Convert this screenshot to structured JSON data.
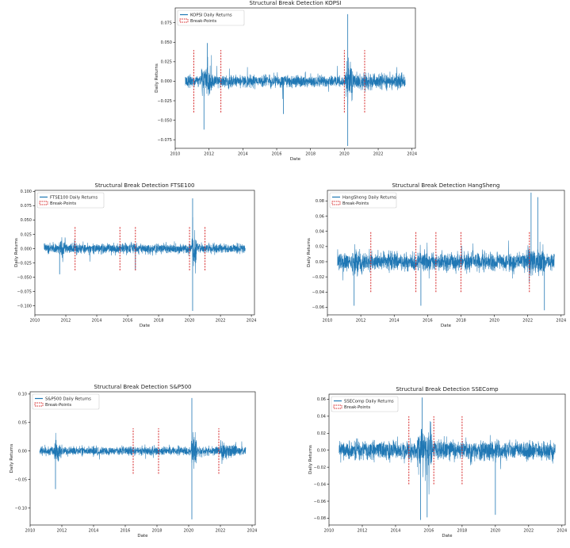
{
  "colors": {
    "line": "#1f77b4",
    "breaks": "#d62728",
    "axis": "#000000"
  },
  "chart_data": [
    {
      "id": "kopsi",
      "type": "line",
      "title": "Structural Break Detection KOPSI",
      "xlabel": "Date",
      "ylabel": "Daily Returns",
      "legend": {
        "placement": "top-left",
        "series_label": "KOPSI Daily Returns",
        "breaks_label": "Break-Points"
      },
      "xlim": [
        2010.0,
        2024.2
      ],
      "ylim": [
        -0.086,
        0.094
      ],
      "x_ticks": [
        2010,
        2012,
        2014,
        2016,
        2018,
        2020,
        2022,
        2024
      ],
      "y_ticks": [
        -0.075,
        -0.05,
        -0.025,
        0.0,
        0.025,
        0.05,
        0.075
      ],
      "y_tick_labels": [
        "−0.075",
        "−0.050",
        "−0.025",
        "0.000",
        "0.025",
        "0.050",
        "0.075"
      ],
      "series": {
        "name": "KOPSI Daily Returns",
        "x_range": [
          2010.6,
          2023.6
        ],
        "base_vol": 0.0085,
        "vol_regimes": [
          {
            "from": 2011.55,
            "to": 2012.2,
            "vol": 0.02
          },
          {
            "from": 2020.1,
            "to": 2020.5,
            "vol": 0.028
          },
          {
            "from": 2020.5,
            "to": 2021.3,
            "vol": 0.012
          },
          {
            "from": 2021.3,
            "to": 2023.6,
            "vol": 0.011
          }
        ],
        "extremes": [
          {
            "x": 2011.7,
            "y": -0.062
          },
          {
            "x": 2011.9,
            "y": 0.049
          },
          {
            "x": 2020.2,
            "y": 0.086
          },
          {
            "x": 2020.2,
            "y": -0.083
          },
          {
            "x": 2016.4,
            "y": -0.042
          }
        ]
      },
      "breaks": {
        "x": [
          2011.1,
          2012.7,
          2020.0,
          2021.2
        ],
        "y_range": [
          -0.04,
          0.04
        ]
      }
    },
    {
      "id": "ftse100",
      "type": "line",
      "title": "Structural Break Detection FTSE100",
      "xlabel": "Date",
      "ylabel": "Daily Returns",
      "legend": {
        "placement": "top-left",
        "series_label": "FTSE100 Daily Returns",
        "breaks_label": "Break-Points"
      },
      "xlim": [
        2010.0,
        2024.2
      ],
      "ylim": [
        -0.116,
        0.102
      ],
      "x_ticks": [
        2010,
        2012,
        2014,
        2016,
        2018,
        2020,
        2022,
        2024
      ],
      "y_ticks": [
        -0.1,
        -0.075,
        -0.05,
        -0.025,
        0.0,
        0.025,
        0.05,
        0.075,
        0.1
      ],
      "y_tick_labels": [
        "−0.100",
        "−0.075",
        "−0.050",
        "−0.025",
        "0.000",
        "0.025",
        "0.050",
        "0.075",
        "0.100"
      ],
      "series": {
        "name": "FTSE100 Daily Returns",
        "x_range": [
          2010.6,
          2023.6
        ],
        "base_vol": 0.0095,
        "vol_regimes": [
          {
            "from": 2011.5,
            "to": 2012.0,
            "vol": 0.017
          },
          {
            "from": 2020.15,
            "to": 2020.45,
            "vol": 0.03
          }
        ],
        "extremes": [
          {
            "x": 2020.2,
            "y": 0.088
          },
          {
            "x": 2020.2,
            "y": -0.109
          },
          {
            "x": 2016.5,
            "y": -0.038
          },
          {
            "x": 2011.6,
            "y": -0.045
          }
        ]
      },
      "breaks": {
        "x": [
          2012.6,
          2015.5,
          2016.5,
          2020.0,
          2021.0
        ],
        "y_range": [
          -0.038,
          0.038
        ]
      }
    },
    {
      "id": "hangsheng",
      "type": "line",
      "title": "Structural Break Detection HangSheng",
      "xlabel": "Date",
      "ylabel": "Daily Returns",
      "legend": {
        "placement": "top-left",
        "series_label": "HangSheng Daily Returns",
        "breaks_label": "Break-Points"
      },
      "xlim": [
        2010.0,
        2024.2
      ],
      "ylim": [
        -0.07,
        0.094
      ],
      "x_ticks": [
        2010,
        2012,
        2014,
        2016,
        2018,
        2020,
        2022,
        2024
      ],
      "y_ticks": [
        -0.06,
        -0.04,
        -0.02,
        0.0,
        0.02,
        0.04,
        0.06,
        0.08
      ],
      "y_tick_labels": [
        "−0.06",
        "−0.04",
        "−0.02",
        "0.00",
        "0.02",
        "0.04",
        "0.06",
        "0.08"
      ],
      "series": {
        "name": "HangSheng Daily Returns",
        "x_range": [
          2010.6,
          2023.6
        ],
        "base_vol": 0.013,
        "vol_regimes": [
          {
            "from": 2011.5,
            "to": 2012.1,
            "vol": 0.02
          },
          {
            "from": 2015.4,
            "to": 2016.2,
            "vol": 0.017
          },
          {
            "from": 2022.0,
            "to": 2023.0,
            "vol": 0.022
          }
        ],
        "extremes": [
          {
            "x": 2011.6,
            "y": -0.058
          },
          {
            "x": 2015.6,
            "y": -0.058
          },
          {
            "x": 2022.2,
            "y": 0.091
          },
          {
            "x": 2022.6,
            "y": 0.085
          },
          {
            "x": 2023.0,
            "y": -0.064
          }
        ]
      },
      "breaks": {
        "x": [
          2012.6,
          2015.3,
          2016.5,
          2018.0,
          2022.1
        ],
        "y_range": [
          -0.04,
          0.04
        ]
      }
    },
    {
      "id": "sp500",
      "type": "line",
      "title": "Structural Break Detection S&P500",
      "xlabel": "Date",
      "ylabel": "Daily Returns",
      "legend": {
        "placement": "top-left",
        "series_label": "S&P500 Daily Returns",
        "breaks_label": "Break-Points"
      },
      "xlim": [
        2010.0,
        2024.2
      ],
      "ylim": [
        -0.13,
        0.104
      ],
      "x_ticks": [
        2010,
        2012,
        2014,
        2016,
        2018,
        2020,
        2022,
        2024
      ],
      "y_ticks": [
        -0.1,
        -0.05,
        0.0,
        0.05,
        0.1
      ],
      "y_tick_labels": [
        "−0.10",
        "−0.05",
        "0.00",
        "0.05",
        "0.10"
      ],
      "series": {
        "name": "S&P500 Daily Returns",
        "x_range": [
          2010.6,
          2023.6
        ],
        "base_vol": 0.0085,
        "vol_regimes": [
          {
            "from": 2011.5,
            "to": 2012.0,
            "vol": 0.02
          },
          {
            "from": 2020.15,
            "to": 2020.5,
            "vol": 0.035
          },
          {
            "from": 2022.0,
            "to": 2023.0,
            "vol": 0.016
          }
        ],
        "extremes": [
          {
            "x": 2020.2,
            "y": 0.093
          },
          {
            "x": 2020.2,
            "y": -0.12
          },
          {
            "x": 2011.6,
            "y": -0.067
          }
        ]
      },
      "breaks": {
        "x": [
          2016.5,
          2018.1,
          2021.9
        ],
        "y_range": [
          -0.04,
          0.04
        ]
      }
    },
    {
      "id": "ssecomp",
      "type": "line",
      "title": "Structural Break Detection SSEComp",
      "xlabel": "Date",
      "ylabel": "Daily Returns",
      "legend": {
        "placement": "top-left",
        "series_label": "SSEComp Daily Returns",
        "breaks_label": "Break-Points"
      },
      "xlim": [
        2010.0,
        2024.2
      ],
      "ylim": [
        -0.088,
        0.066
      ],
      "x_ticks": [
        2010,
        2012,
        2014,
        2016,
        2018,
        2020,
        2022,
        2024
      ],
      "y_ticks": [
        -0.08,
        -0.06,
        -0.04,
        -0.02,
        0.0,
        0.02,
        0.04,
        0.06
      ],
      "y_tick_labels": [
        "−0.08",
        "−0.06",
        "−0.04",
        "−0.02",
        "0.00",
        "0.02",
        "0.04",
        "0.06"
      ],
      "series": {
        "name": "SSEComp Daily Returns",
        "x_range": [
          2010.6,
          2023.6
        ],
        "base_vol": 0.012,
        "vol_regimes": [
          {
            "from": 2015.3,
            "to": 2016.2,
            "vol": 0.03
          },
          {
            "from": 2018.0,
            "to": 2020.0,
            "vol": 0.014
          }
        ],
        "extremes": [
          {
            "x": 2015.5,
            "y": -0.082
          },
          {
            "x": 2015.6,
            "y": 0.062
          },
          {
            "x": 2020.0,
            "y": -0.076
          },
          {
            "x": 2015.9,
            "y": -0.079
          }
        ]
      },
      "breaks": {
        "x": [
          2014.8,
          2016.3,
          2018.0
        ],
        "y_range": [
          -0.04,
          0.04
        ]
      }
    }
  ]
}
